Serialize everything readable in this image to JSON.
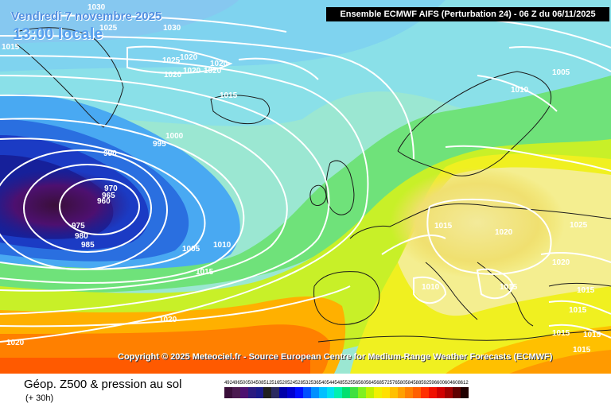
{
  "header": {
    "date": "Vendredi 7 novembre 2025",
    "local_time": "13:00 locale",
    "model_info": "Ensemble ECMWF AIFS  (Perturbation 24)  -  06 Z du 06/11/2025"
  },
  "copyright": "Copyright © 2025 Meteociel.fr - Source European Centre for Medium-Range Weather Forecasts (ECMWF)",
  "footer": {
    "parameter": "Géop. Z500 & pression au sol",
    "lead_time": "(+ 30h)"
  },
  "colorscale": {
    "values": [
      "492",
      "496",
      "500",
      "504",
      "508",
      "512",
      "516",
      "520",
      "524",
      "528",
      "532",
      "536",
      "540",
      "544",
      "548",
      "552",
      "556",
      "560",
      "564",
      "568",
      "572",
      "576",
      "580",
      "584",
      "588",
      "592",
      "596",
      "600",
      "604",
      "608",
      "612"
    ],
    "colors": [
      "#3a0f3a",
      "#4b1a50",
      "#4d1070",
      "#2a1a80",
      "#1a1a8a",
      "#202020",
      "#2a2a60",
      "#0000a8",
      "#0000d0",
      "#0010ff",
      "#0050ff",
      "#0090ff",
      "#00c0ff",
      "#00e0f0",
      "#00f0b0",
      "#00e070",
      "#40e040",
      "#80f020",
      "#c0f000",
      "#f0f000",
      "#ffe000",
      "#ffc000",
      "#ffa000",
      "#ff8000",
      "#ff6000",
      "#ff3000",
      "#f01000",
      "#d00000",
      "#a00000",
      "#600000",
      "#200000"
    ]
  },
  "isobar_labels": [
    "1030",
    "1025",
    "1015",
    "1030",
    "1025",
    "1020",
    "1020",
    "1020",
    "1020",
    "1020",
    "1015",
    "1000",
    "995",
    "990",
    "970",
    "965",
    "960",
    "975",
    "980",
    "985",
    "1005",
    "1010",
    "1015",
    "1020",
    "1020",
    "1005",
    "1010",
    "1015",
    "1020",
    "1025",
    "1020",
    "1015",
    "1010",
    "1015",
    "1015",
    "1015",
    "1015",
    "1015"
  ]
}
